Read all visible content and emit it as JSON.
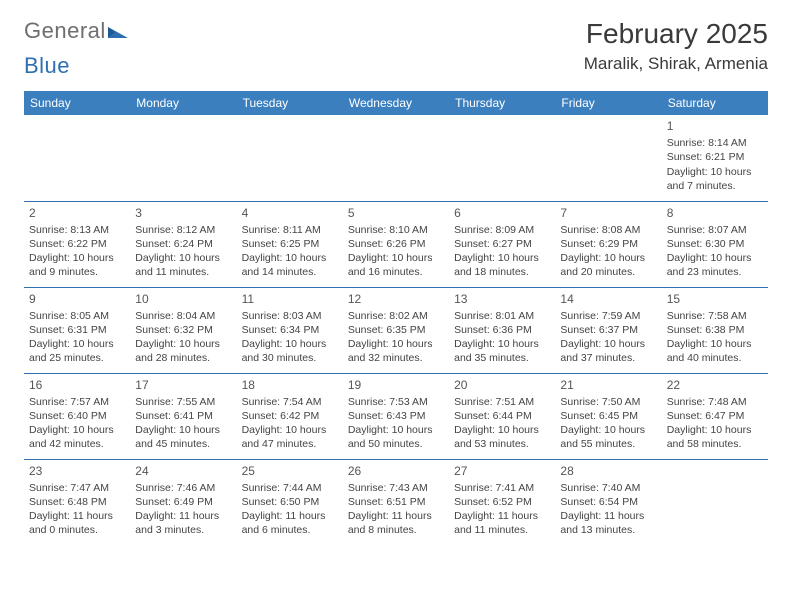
{
  "logo": {
    "text1": "General",
    "text2": "Blue"
  },
  "title": "February 2025",
  "location": "Maralik, Shirak, Armenia",
  "colors": {
    "header_bg": "#3b7fbf",
    "header_text": "#ffffff",
    "rule": "#2f6fb0",
    "body_text": "#444444",
    "logo_gray": "#6e6e6e",
    "logo_blue": "#2f6fb0"
  },
  "day_headers": [
    "Sunday",
    "Monday",
    "Tuesday",
    "Wednesday",
    "Thursday",
    "Friday",
    "Saturday"
  ],
  "weeks": [
    [
      null,
      null,
      null,
      null,
      null,
      null,
      {
        "n": "1",
        "sr": "Sunrise: 8:14 AM",
        "ss": "Sunset: 6:21 PM",
        "dl1": "Daylight: 10 hours",
        "dl2": "and 7 minutes."
      }
    ],
    [
      {
        "n": "2",
        "sr": "Sunrise: 8:13 AM",
        "ss": "Sunset: 6:22 PM",
        "dl1": "Daylight: 10 hours",
        "dl2": "and 9 minutes."
      },
      {
        "n": "3",
        "sr": "Sunrise: 8:12 AM",
        "ss": "Sunset: 6:24 PM",
        "dl1": "Daylight: 10 hours",
        "dl2": "and 11 minutes."
      },
      {
        "n": "4",
        "sr": "Sunrise: 8:11 AM",
        "ss": "Sunset: 6:25 PM",
        "dl1": "Daylight: 10 hours",
        "dl2": "and 14 minutes."
      },
      {
        "n": "5",
        "sr": "Sunrise: 8:10 AM",
        "ss": "Sunset: 6:26 PM",
        "dl1": "Daylight: 10 hours",
        "dl2": "and 16 minutes."
      },
      {
        "n": "6",
        "sr": "Sunrise: 8:09 AM",
        "ss": "Sunset: 6:27 PM",
        "dl1": "Daylight: 10 hours",
        "dl2": "and 18 minutes."
      },
      {
        "n": "7",
        "sr": "Sunrise: 8:08 AM",
        "ss": "Sunset: 6:29 PM",
        "dl1": "Daylight: 10 hours",
        "dl2": "and 20 minutes."
      },
      {
        "n": "8",
        "sr": "Sunrise: 8:07 AM",
        "ss": "Sunset: 6:30 PM",
        "dl1": "Daylight: 10 hours",
        "dl2": "and 23 minutes."
      }
    ],
    [
      {
        "n": "9",
        "sr": "Sunrise: 8:05 AM",
        "ss": "Sunset: 6:31 PM",
        "dl1": "Daylight: 10 hours",
        "dl2": "and 25 minutes."
      },
      {
        "n": "10",
        "sr": "Sunrise: 8:04 AM",
        "ss": "Sunset: 6:32 PM",
        "dl1": "Daylight: 10 hours",
        "dl2": "and 28 minutes."
      },
      {
        "n": "11",
        "sr": "Sunrise: 8:03 AM",
        "ss": "Sunset: 6:34 PM",
        "dl1": "Daylight: 10 hours",
        "dl2": "and 30 minutes."
      },
      {
        "n": "12",
        "sr": "Sunrise: 8:02 AM",
        "ss": "Sunset: 6:35 PM",
        "dl1": "Daylight: 10 hours",
        "dl2": "and 32 minutes."
      },
      {
        "n": "13",
        "sr": "Sunrise: 8:01 AM",
        "ss": "Sunset: 6:36 PM",
        "dl1": "Daylight: 10 hours",
        "dl2": "and 35 minutes."
      },
      {
        "n": "14",
        "sr": "Sunrise: 7:59 AM",
        "ss": "Sunset: 6:37 PM",
        "dl1": "Daylight: 10 hours",
        "dl2": "and 37 minutes."
      },
      {
        "n": "15",
        "sr": "Sunrise: 7:58 AM",
        "ss": "Sunset: 6:38 PM",
        "dl1": "Daylight: 10 hours",
        "dl2": "and 40 minutes."
      }
    ],
    [
      {
        "n": "16",
        "sr": "Sunrise: 7:57 AM",
        "ss": "Sunset: 6:40 PM",
        "dl1": "Daylight: 10 hours",
        "dl2": "and 42 minutes."
      },
      {
        "n": "17",
        "sr": "Sunrise: 7:55 AM",
        "ss": "Sunset: 6:41 PM",
        "dl1": "Daylight: 10 hours",
        "dl2": "and 45 minutes."
      },
      {
        "n": "18",
        "sr": "Sunrise: 7:54 AM",
        "ss": "Sunset: 6:42 PM",
        "dl1": "Daylight: 10 hours",
        "dl2": "and 47 minutes."
      },
      {
        "n": "19",
        "sr": "Sunrise: 7:53 AM",
        "ss": "Sunset: 6:43 PM",
        "dl1": "Daylight: 10 hours",
        "dl2": "and 50 minutes."
      },
      {
        "n": "20",
        "sr": "Sunrise: 7:51 AM",
        "ss": "Sunset: 6:44 PM",
        "dl1": "Daylight: 10 hours",
        "dl2": "and 53 minutes."
      },
      {
        "n": "21",
        "sr": "Sunrise: 7:50 AM",
        "ss": "Sunset: 6:45 PM",
        "dl1": "Daylight: 10 hours",
        "dl2": "and 55 minutes."
      },
      {
        "n": "22",
        "sr": "Sunrise: 7:48 AM",
        "ss": "Sunset: 6:47 PM",
        "dl1": "Daylight: 10 hours",
        "dl2": "and 58 minutes."
      }
    ],
    [
      {
        "n": "23",
        "sr": "Sunrise: 7:47 AM",
        "ss": "Sunset: 6:48 PM",
        "dl1": "Daylight: 11 hours",
        "dl2": "and 0 minutes."
      },
      {
        "n": "24",
        "sr": "Sunrise: 7:46 AM",
        "ss": "Sunset: 6:49 PM",
        "dl1": "Daylight: 11 hours",
        "dl2": "and 3 minutes."
      },
      {
        "n": "25",
        "sr": "Sunrise: 7:44 AM",
        "ss": "Sunset: 6:50 PM",
        "dl1": "Daylight: 11 hours",
        "dl2": "and 6 minutes."
      },
      {
        "n": "26",
        "sr": "Sunrise: 7:43 AM",
        "ss": "Sunset: 6:51 PM",
        "dl1": "Daylight: 11 hours",
        "dl2": "and 8 minutes."
      },
      {
        "n": "27",
        "sr": "Sunrise: 7:41 AM",
        "ss": "Sunset: 6:52 PM",
        "dl1": "Daylight: 11 hours",
        "dl2": "and 11 minutes."
      },
      {
        "n": "28",
        "sr": "Sunrise: 7:40 AM",
        "ss": "Sunset: 6:54 PM",
        "dl1": "Daylight: 11 hours",
        "dl2": "and 13 minutes."
      },
      null
    ]
  ]
}
